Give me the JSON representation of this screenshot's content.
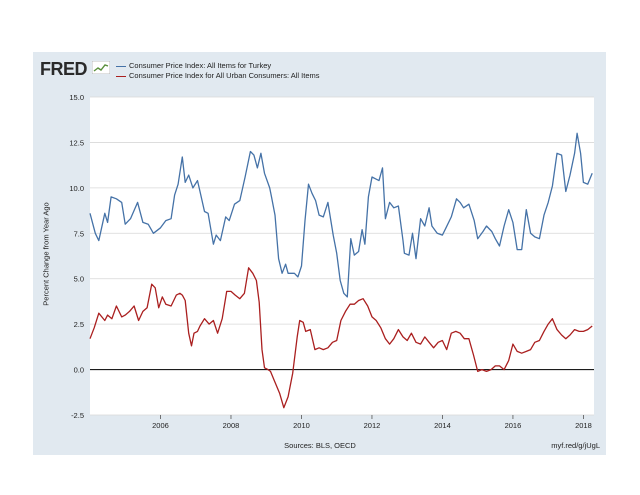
{
  "branding": {
    "logo_text": "FRED"
  },
  "chart_data": {
    "type": "line",
    "ylabel": "Percent Change from Year Ago",
    "ylim": [
      -2.5,
      15.0
    ],
    "yticks": [
      "15.0",
      "12.5",
      "10.0",
      "7.5",
      "5.0",
      "2.5",
      "0.0",
      "-2.5"
    ],
    "xlim": [
      2004.0,
      2018.3
    ],
    "xticks": [
      {
        "value": 2006,
        "label": "2006"
      },
      {
        "value": 2008,
        "label": "2008"
      },
      {
        "value": 2010,
        "label": "2010"
      },
      {
        "value": 2012,
        "label": "2012"
      },
      {
        "value": 2014,
        "label": "2014"
      },
      {
        "value": 2016,
        "label": "2016"
      },
      {
        "value": 2018,
        "label": "2018"
      }
    ],
    "grid": "horizontal",
    "zero_line": true,
    "legend_position": "top-left",
    "series": [
      {
        "name": "Consumer Price Index: All Items for Turkey",
        "color": "#4572a7",
        "points": [
          [
            2004.0,
            8.6
          ],
          [
            2004.15,
            7.5
          ],
          [
            2004.25,
            7.1
          ],
          [
            2004.42,
            8.6
          ],
          [
            2004.5,
            8.1
          ],
          [
            2004.6,
            9.5
          ],
          [
            2004.75,
            9.4
          ],
          [
            2004.9,
            9.2
          ],
          [
            2005.0,
            8.0
          ],
          [
            2005.15,
            8.3
          ],
          [
            2005.35,
            9.2
          ],
          [
            2005.5,
            8.1
          ],
          [
            2005.65,
            8.0
          ],
          [
            2005.8,
            7.5
          ],
          [
            2006.0,
            7.8
          ],
          [
            2006.15,
            8.2
          ],
          [
            2006.3,
            8.3
          ],
          [
            2006.4,
            9.6
          ],
          [
            2006.5,
            10.2
          ],
          [
            2006.62,
            11.7
          ],
          [
            2006.7,
            10.3
          ],
          [
            2006.8,
            10.7
          ],
          [
            2006.92,
            10.0
          ],
          [
            2007.05,
            10.4
          ],
          [
            2007.12,
            9.8
          ],
          [
            2007.25,
            8.7
          ],
          [
            2007.35,
            8.6
          ],
          [
            2007.5,
            6.9
          ],
          [
            2007.58,
            7.4
          ],
          [
            2007.7,
            7.1
          ],
          [
            2007.85,
            8.4
          ],
          [
            2007.95,
            8.2
          ],
          [
            2008.1,
            9.1
          ],
          [
            2008.25,
            9.3
          ],
          [
            2008.4,
            10.6
          ],
          [
            2008.55,
            12.0
          ],
          [
            2008.65,
            11.8
          ],
          [
            2008.75,
            11.1
          ],
          [
            2008.85,
            11.9
          ],
          [
            2008.95,
            10.8
          ],
          [
            2009.1,
            10.0
          ],
          [
            2009.15,
            9.5
          ],
          [
            2009.25,
            8.5
          ],
          [
            2009.35,
            6.1
          ],
          [
            2009.45,
            5.3
          ],
          [
            2009.55,
            5.8
          ],
          [
            2009.62,
            5.3
          ],
          [
            2009.8,
            5.3
          ],
          [
            2009.9,
            5.1
          ],
          [
            2010.0,
            5.7
          ],
          [
            2010.1,
            8.2
          ],
          [
            2010.2,
            10.2
          ],
          [
            2010.3,
            9.7
          ],
          [
            2010.4,
            9.3
          ],
          [
            2010.5,
            8.5
          ],
          [
            2010.62,
            8.4
          ],
          [
            2010.75,
            9.2
          ],
          [
            2010.9,
            7.4
          ],
          [
            2011.0,
            6.4
          ],
          [
            2011.1,
            4.9
          ],
          [
            2011.2,
            4.2
          ],
          [
            2011.3,
            4.0
          ],
          [
            2011.4,
            7.2
          ],
          [
            2011.5,
            6.3
          ],
          [
            2011.62,
            6.5
          ],
          [
            2011.72,
            7.7
          ],
          [
            2011.8,
            6.9
          ],
          [
            2011.9,
            9.5
          ],
          [
            2012.0,
            10.6
          ],
          [
            2012.1,
            10.5
          ],
          [
            2012.2,
            10.4
          ],
          [
            2012.3,
            11.1
          ],
          [
            2012.38,
            8.3
          ],
          [
            2012.5,
            9.2
          ],
          [
            2012.62,
            8.9
          ],
          [
            2012.75,
            9.0
          ],
          [
            2012.88,
            7.1
          ],
          [
            2012.92,
            6.4
          ],
          [
            2013.05,
            6.3
          ],
          [
            2013.15,
            7.5
          ],
          [
            2013.25,
            6.1
          ],
          [
            2013.38,
            8.3
          ],
          [
            2013.5,
            7.9
          ],
          [
            2013.62,
            8.9
          ],
          [
            2013.7,
            7.9
          ],
          [
            2013.85,
            7.5
          ],
          [
            2014.0,
            7.4
          ],
          [
            2014.1,
            7.8
          ],
          [
            2014.25,
            8.4
          ],
          [
            2014.4,
            9.4
          ],
          [
            2014.5,
            9.2
          ],
          [
            2014.6,
            8.9
          ],
          [
            2014.75,
            9.1
          ],
          [
            2014.9,
            8.2
          ],
          [
            2015.0,
            7.2
          ],
          [
            2015.15,
            7.6
          ],
          [
            2015.25,
            7.9
          ],
          [
            2015.4,
            7.6
          ],
          [
            2015.5,
            7.2
          ],
          [
            2015.62,
            6.8
          ],
          [
            2015.75,
            7.9
          ],
          [
            2015.88,
            8.8
          ],
          [
            2016.0,
            8.1
          ],
          [
            2016.12,
            6.6
          ],
          [
            2016.25,
            6.6
          ],
          [
            2016.38,
            8.8
          ],
          [
            2016.5,
            7.5
          ],
          [
            2016.62,
            7.3
          ],
          [
            2016.75,
            7.2
          ],
          [
            2016.88,
            8.5
          ],
          [
            2017.0,
            9.2
          ],
          [
            2017.12,
            10.1
          ],
          [
            2017.25,
            11.9
          ],
          [
            2017.38,
            11.8
          ],
          [
            2017.5,
            9.8
          ],
          [
            2017.62,
            10.7
          ],
          [
            2017.75,
            11.9
          ],
          [
            2017.82,
            13.0
          ],
          [
            2017.92,
            11.9
          ],
          [
            2018.0,
            10.3
          ],
          [
            2018.12,
            10.2
          ],
          [
            2018.25,
            10.8
          ]
        ]
      },
      {
        "name": "Consumer Price Index for All Urban Consumers: All Items",
        "color": "#aa1f1f",
        "points": [
          [
            2004.0,
            1.7
          ],
          [
            2004.12,
            2.3
          ],
          [
            2004.25,
            3.1
          ],
          [
            2004.42,
            2.7
          ],
          [
            2004.5,
            3.0
          ],
          [
            2004.62,
            2.8
          ],
          [
            2004.75,
            3.5
          ],
          [
            2004.9,
            2.9
          ],
          [
            2005.0,
            3.0
          ],
          [
            2005.12,
            3.2
          ],
          [
            2005.25,
            3.5
          ],
          [
            2005.38,
            2.7
          ],
          [
            2005.5,
            3.2
          ],
          [
            2005.62,
            3.4
          ],
          [
            2005.75,
            4.7
          ],
          [
            2005.85,
            4.5
          ],
          [
            2005.95,
            3.4
          ],
          [
            2006.05,
            4.0
          ],
          [
            2006.15,
            3.6
          ],
          [
            2006.3,
            3.5
          ],
          [
            2006.45,
            4.1
          ],
          [
            2006.55,
            4.2
          ],
          [
            2006.62,
            4.1
          ],
          [
            2006.7,
            3.8
          ],
          [
            2006.8,
            2.0
          ],
          [
            2006.88,
            1.3
          ],
          [
            2006.95,
            2.0
          ],
          [
            2007.05,
            2.1
          ],
          [
            2007.12,
            2.4
          ],
          [
            2007.25,
            2.8
          ],
          [
            2007.38,
            2.5
          ],
          [
            2007.5,
            2.7
          ],
          [
            2007.62,
            2.0
          ],
          [
            2007.75,
            2.8
          ],
          [
            2007.88,
            4.3
          ],
          [
            2008.0,
            4.3
          ],
          [
            2008.12,
            4.1
          ],
          [
            2008.25,
            3.9
          ],
          [
            2008.38,
            4.2
          ],
          [
            2008.5,
            5.6
          ],
          [
            2008.62,
            5.3
          ],
          [
            2008.72,
            4.9
          ],
          [
            2008.8,
            3.7
          ],
          [
            2008.88,
            1.1
          ],
          [
            2008.95,
            0.1
          ],
          [
            2009.05,
            0.0
          ],
          [
            2009.12,
            -0.1
          ],
          [
            2009.25,
            -0.7
          ],
          [
            2009.38,
            -1.3
          ],
          [
            2009.5,
            -2.1
          ],
          [
            2009.62,
            -1.5
          ],
          [
            2009.75,
            -0.2
          ],
          [
            2009.88,
            1.8
          ],
          [
            2009.95,
            2.7
          ],
          [
            2010.05,
            2.6
          ],
          [
            2010.12,
            2.1
          ],
          [
            2010.25,
            2.2
          ],
          [
            2010.38,
            1.1
          ],
          [
            2010.5,
            1.2
          ],
          [
            2010.62,
            1.1
          ],
          [
            2010.75,
            1.2
          ],
          [
            2010.88,
            1.5
          ],
          [
            2011.0,
            1.6
          ],
          [
            2011.12,
            2.7
          ],
          [
            2011.25,
            3.2
          ],
          [
            2011.38,
            3.6
          ],
          [
            2011.5,
            3.6
          ],
          [
            2011.62,
            3.8
          ],
          [
            2011.75,
            3.9
          ],
          [
            2011.88,
            3.5
          ],
          [
            2012.0,
            2.9
          ],
          [
            2012.12,
            2.7
          ],
          [
            2012.25,
            2.3
          ],
          [
            2012.38,
            1.7
          ],
          [
            2012.5,
            1.4
          ],
          [
            2012.62,
            1.7
          ],
          [
            2012.75,
            2.2
          ],
          [
            2012.88,
            1.8
          ],
          [
            2013.0,
            1.6
          ],
          [
            2013.12,
            2.0
          ],
          [
            2013.25,
            1.5
          ],
          [
            2013.38,
            1.4
          ],
          [
            2013.5,
            1.8
          ],
          [
            2013.62,
            1.5
          ],
          [
            2013.75,
            1.2
          ],
          [
            2013.88,
            1.5
          ],
          [
            2014.0,
            1.6
          ],
          [
            2014.12,
            1.1
          ],
          [
            2014.25,
            2.0
          ],
          [
            2014.38,
            2.1
          ],
          [
            2014.5,
            2.0
          ],
          [
            2014.62,
            1.7
          ],
          [
            2014.75,
            1.7
          ],
          [
            2014.88,
            0.8
          ],
          [
            2015.0,
            -0.1
          ],
          [
            2015.12,
            0.0
          ],
          [
            2015.25,
            -0.1
          ],
          [
            2015.38,
            0.0
          ],
          [
            2015.5,
            0.2
          ],
          [
            2015.62,
            0.2
          ],
          [
            2015.75,
            0.0
          ],
          [
            2015.88,
            0.5
          ],
          [
            2016.0,
            1.4
          ],
          [
            2016.12,
            1.0
          ],
          [
            2016.25,
            0.9
          ],
          [
            2016.38,
            1.0
          ],
          [
            2016.5,
            1.1
          ],
          [
            2016.62,
            1.5
          ],
          [
            2016.75,
            1.6
          ],
          [
            2016.88,
            2.1
          ],
          [
            2017.0,
            2.5
          ],
          [
            2017.12,
            2.8
          ],
          [
            2017.25,
            2.2
          ],
          [
            2017.38,
            1.9
          ],
          [
            2017.5,
            1.7
          ],
          [
            2017.62,
            1.9
          ],
          [
            2017.75,
            2.2
          ],
          [
            2017.88,
            2.1
          ],
          [
            2018.0,
            2.1
          ],
          [
            2018.12,
            2.2
          ],
          [
            2018.25,
            2.4
          ]
        ]
      }
    ]
  },
  "footer": {
    "sources": "Sources: BLS, OECD",
    "url": "myf.red/g/jUgL"
  }
}
